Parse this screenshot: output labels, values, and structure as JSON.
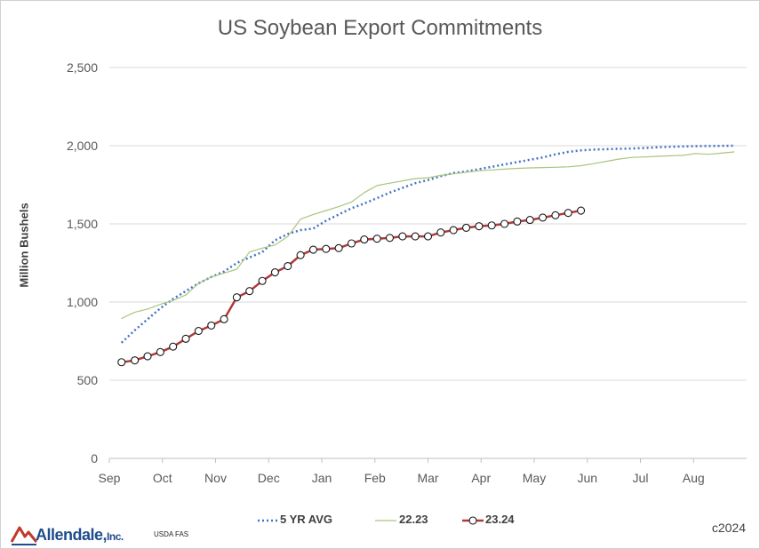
{
  "chart_data": {
    "type": "line",
    "title": "US Soybean Export Commitments",
    "ylabel": "Million Bushels",
    "xlabel": "",
    "ylim": [
      0,
      2500
    ],
    "yticks": [
      0,
      500,
      1000,
      1500,
      2000,
      2500
    ],
    "ytick_labels": [
      "0",
      "500",
      "1,000",
      "1,500",
      "2,000",
      "2,500"
    ],
    "xlim": [
      0,
      12
    ],
    "xticks": [
      0,
      1,
      2,
      3,
      4,
      5,
      6,
      7,
      8,
      9,
      10,
      11
    ],
    "xtick_labels": [
      "Sep",
      "Oct",
      "Nov",
      "Dec",
      "Jan",
      "Feb",
      "Mar",
      "Apr",
      "May",
      "Jun",
      "Jul",
      "Aug"
    ],
    "grid": "horizontal",
    "legend_position": "bottom",
    "series": [
      {
        "name": "5 YR AVG",
        "color": "#4472c4",
        "style": "dotted",
        "x": [
          0.23,
          0.48,
          0.72,
          0.96,
          1.2,
          1.44,
          1.68,
          1.92,
          2.16,
          2.4,
          2.64,
          2.88,
          3.12,
          3.36,
          3.6,
          3.84,
          4.08,
          4.32,
          4.56,
          4.8,
          5.04,
          5.28,
          5.52,
          5.76,
          6,
          6.24,
          6.48,
          6.72,
          6.96,
          7.2,
          7.44,
          7.68,
          7.92,
          8.16,
          8.4,
          8.64,
          8.88,
          9.12,
          9.36,
          9.6,
          9.84,
          10.08,
          10.32,
          10.56,
          10.8,
          11.04,
          11.28,
          11.52,
          11.76
        ],
        "y": [
          740,
          820,
          890,
          960,
          1020,
          1070,
          1120,
          1160,
          1195,
          1250,
          1285,
          1320,
          1395,
          1435,
          1460,
          1470,
          1520,
          1560,
          1600,
          1630,
          1665,
          1700,
          1730,
          1760,
          1780,
          1805,
          1825,
          1835,
          1850,
          1865,
          1880,
          1895,
          1910,
          1925,
          1945,
          1960,
          1970,
          1975,
          1978,
          1980,
          1982,
          1985,
          1990,
          1993,
          1995,
          1997,
          1998,
          1999,
          2000
        ]
      },
      {
        "name": "22.23",
        "color": "#a9c57d",
        "style": "solid",
        "x": [
          0.23,
          0.48,
          0.72,
          0.96,
          1.2,
          1.44,
          1.68,
          1.92,
          2.16,
          2.4,
          2.64,
          2.88,
          3.12,
          3.36,
          3.6,
          3.84,
          4.08,
          4.32,
          4.56,
          4.8,
          5.04,
          5.28,
          5.52,
          5.76,
          6,
          6.24,
          6.48,
          6.72,
          6.96,
          7.2,
          7.44,
          7.68,
          7.92,
          8.16,
          8.4,
          8.64,
          8.88,
          9.12,
          9.36,
          9.6,
          9.84,
          10.08,
          10.32,
          10.56,
          10.8,
          11.04,
          11.28,
          11.52,
          11.76
        ],
        "y": [
          895,
          935,
          955,
          985,
          1010,
          1045,
          1120,
          1160,
          1185,
          1210,
          1320,
          1345,
          1365,
          1420,
          1530,
          1560,
          1585,
          1610,
          1640,
          1700,
          1745,
          1760,
          1775,
          1790,
          1795,
          1810,
          1820,
          1830,
          1840,
          1845,
          1850,
          1855,
          1858,
          1860,
          1862,
          1865,
          1872,
          1885,
          1900,
          1915,
          1925,
          1928,
          1932,
          1935,
          1938,
          1950,
          1945,
          1952,
          1960
        ]
      },
      {
        "name": "23.24",
        "color": "#b03a3a",
        "style": "solid-markers",
        "x": [
          0.23,
          0.48,
          0.72,
          0.96,
          1.2,
          1.44,
          1.68,
          1.92,
          2.16,
          2.4,
          2.64,
          2.88,
          3.12,
          3.36,
          3.6,
          3.84,
          4.08,
          4.32,
          4.56,
          4.8,
          5.04,
          5.28,
          5.52,
          5.76,
          6,
          6.24,
          6.48,
          6.72,
          6.96,
          7.2,
          7.44,
          7.68,
          7.92,
          8.16,
          8.4,
          8.64,
          8.88
        ],
        "y": [
          615,
          627,
          653,
          680,
          715,
          765,
          815,
          850,
          890,
          1030,
          1070,
          1135,
          1190,
          1230,
          1300,
          1335,
          1340,
          1345,
          1375,
          1400,
          1405,
          1410,
          1420,
          1420,
          1420,
          1445,
          1460,
          1475,
          1485,
          1490,
          1500,
          1515,
          1525,
          1540,
          1555,
          1570,
          1585
        ]
      }
    ]
  },
  "footer": {
    "logo_text": "Allendale,",
    "logo_inc": "Inc.",
    "source": "USDA FAS",
    "copyright": "c2024"
  }
}
